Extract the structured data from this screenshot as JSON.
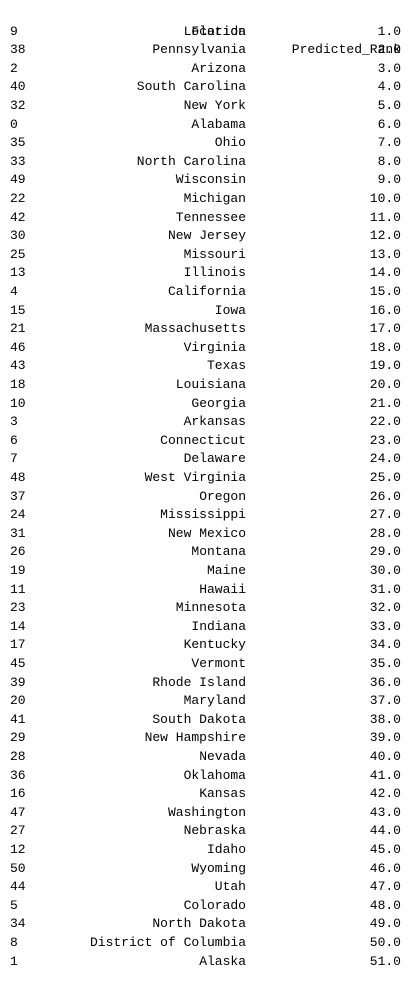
{
  "table": {
    "columns": [
      "Location",
      "Predicted_Rank"
    ],
    "rows": [
      {
        "index": "9",
        "location": "Florida",
        "rank": "1.0"
      },
      {
        "index": "38",
        "location": "Pennsylvania",
        "rank": "2.0"
      },
      {
        "index": "2",
        "location": "Arizona",
        "rank": "3.0"
      },
      {
        "index": "40",
        "location": "South Carolina",
        "rank": "4.0"
      },
      {
        "index": "32",
        "location": "New York",
        "rank": "5.0"
      },
      {
        "index": "0",
        "location": "Alabama",
        "rank": "6.0"
      },
      {
        "index": "35",
        "location": "Ohio",
        "rank": "7.0"
      },
      {
        "index": "33",
        "location": "North Carolina",
        "rank": "8.0"
      },
      {
        "index": "49",
        "location": "Wisconsin",
        "rank": "9.0"
      },
      {
        "index": "22",
        "location": "Michigan",
        "rank": "10.0"
      },
      {
        "index": "42",
        "location": "Tennessee",
        "rank": "11.0"
      },
      {
        "index": "30",
        "location": "New Jersey",
        "rank": "12.0"
      },
      {
        "index": "25",
        "location": "Missouri",
        "rank": "13.0"
      },
      {
        "index": "13",
        "location": "Illinois",
        "rank": "14.0"
      },
      {
        "index": "4",
        "location": "California",
        "rank": "15.0"
      },
      {
        "index": "15",
        "location": "Iowa",
        "rank": "16.0"
      },
      {
        "index": "21",
        "location": "Massachusetts",
        "rank": "17.0"
      },
      {
        "index": "46",
        "location": "Virginia",
        "rank": "18.0"
      },
      {
        "index": "43",
        "location": "Texas",
        "rank": "19.0"
      },
      {
        "index": "18",
        "location": "Louisiana",
        "rank": "20.0"
      },
      {
        "index": "10",
        "location": "Georgia",
        "rank": "21.0"
      },
      {
        "index": "3",
        "location": "Arkansas",
        "rank": "22.0"
      },
      {
        "index": "6",
        "location": "Connecticut",
        "rank": "23.0"
      },
      {
        "index": "7",
        "location": "Delaware",
        "rank": "24.0"
      },
      {
        "index": "48",
        "location": "West Virginia",
        "rank": "25.0"
      },
      {
        "index": "37",
        "location": "Oregon",
        "rank": "26.0"
      },
      {
        "index": "24",
        "location": "Mississippi",
        "rank": "27.0"
      },
      {
        "index": "31",
        "location": "New Mexico",
        "rank": "28.0"
      },
      {
        "index": "26",
        "location": "Montana",
        "rank": "29.0"
      },
      {
        "index": "19",
        "location": "Maine",
        "rank": "30.0"
      },
      {
        "index": "11",
        "location": "Hawaii",
        "rank": "31.0"
      },
      {
        "index": "23",
        "location": "Minnesota",
        "rank": "32.0"
      },
      {
        "index": "14",
        "location": "Indiana",
        "rank": "33.0"
      },
      {
        "index": "17",
        "location": "Kentucky",
        "rank": "34.0"
      },
      {
        "index": "45",
        "location": "Vermont",
        "rank": "35.0"
      },
      {
        "index": "39",
        "location": "Rhode Island",
        "rank": "36.0"
      },
      {
        "index": "20",
        "location": "Maryland",
        "rank": "37.0"
      },
      {
        "index": "41",
        "location": "South Dakota",
        "rank": "38.0"
      },
      {
        "index": "29",
        "location": "New Hampshire",
        "rank": "39.0"
      },
      {
        "index": "28",
        "location": "Nevada",
        "rank": "40.0"
      },
      {
        "index": "36",
        "location": "Oklahoma",
        "rank": "41.0"
      },
      {
        "index": "16",
        "location": "Kansas",
        "rank": "42.0"
      },
      {
        "index": "47",
        "location": "Washington",
        "rank": "43.0"
      },
      {
        "index": "27",
        "location": "Nebraska",
        "rank": "44.0"
      },
      {
        "index": "12",
        "location": "Idaho",
        "rank": "45.0"
      },
      {
        "index": "50",
        "location": "Wyoming",
        "rank": "46.0"
      },
      {
        "index": "44",
        "location": "Utah",
        "rank": "47.0"
      },
      {
        "index": "5",
        "location": "Colorado",
        "rank": "48.0"
      },
      {
        "index": "34",
        "location": "North Dakota",
        "rank": "49.0"
      },
      {
        "index": "8",
        "location": "District of Columbia",
        "rank": "50.0"
      },
      {
        "index": "1",
        "location": "Alaska",
        "rank": "51.0"
      }
    ]
  }
}
